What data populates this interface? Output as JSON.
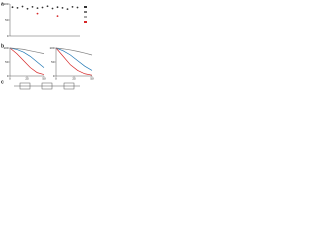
{
  "panels": [
    "a",
    "b",
    "c"
  ],
  "chart_data": [
    {
      "type": "dot",
      "categories": [
        null,
        null,
        null,
        null,
        null,
        null,
        null,
        null,
        null,
        null,
        null,
        null,
        null,
        null
      ],
      "series": [
        {
          "color": "#333333",
          "values": [
            90,
            88,
            92,
            85,
            91,
            87,
            89,
            93,
            86,
            90,
            88,
            84,
            91,
            89
          ]
        },
        {
          "color": "#d62728",
          "values": [
            null,
            null,
            null,
            null,
            null,
            70,
            null,
            null,
            null,
            62,
            null,
            null,
            null,
            null
          ]
        }
      ],
      "ylim": [
        0,
        100
      ],
      "yticks": [
        0,
        50,
        100
      ]
    },
    {
      "type": "line",
      "x": [
        0,
        10,
        20,
        30,
        40,
        50
      ],
      "series": [
        {
          "color": "#d62728",
          "values": [
            100,
            80,
            55,
            30,
            12,
            5
          ]
        },
        {
          "color": "#1f77b4",
          "values": [
            100,
            95,
            85,
            70,
            50,
            30
          ]
        },
        {
          "color": "#7f7f7f",
          "values": [
            100,
            98,
            95,
            90,
            85,
            80
          ]
        }
      ],
      "xlim": [
        0,
        50
      ],
      "xticks": [
        0,
        25,
        50
      ],
      "ylim": [
        0,
        100
      ],
      "yticks": [
        0,
        50,
        100
      ]
    },
    {
      "type": "line",
      "x": [
        0,
        10,
        20,
        30,
        40,
        50
      ],
      "series": [
        {
          "color": "#d62728",
          "values": [
            100,
            70,
            40,
            20,
            8,
            3
          ]
        },
        {
          "color": "#1f77b4",
          "values": [
            100,
            90,
            75,
            55,
            35,
            20
          ]
        },
        {
          "color": "#7f7f7f",
          "values": [
            100,
            97,
            93,
            88,
            82,
            75
          ]
        }
      ],
      "xlim": [
        0,
        50
      ],
      "xticks": [
        0,
        25,
        50
      ],
      "ylim": [
        0,
        100
      ],
      "yticks": [
        0,
        50,
        100
      ]
    }
  ]
}
